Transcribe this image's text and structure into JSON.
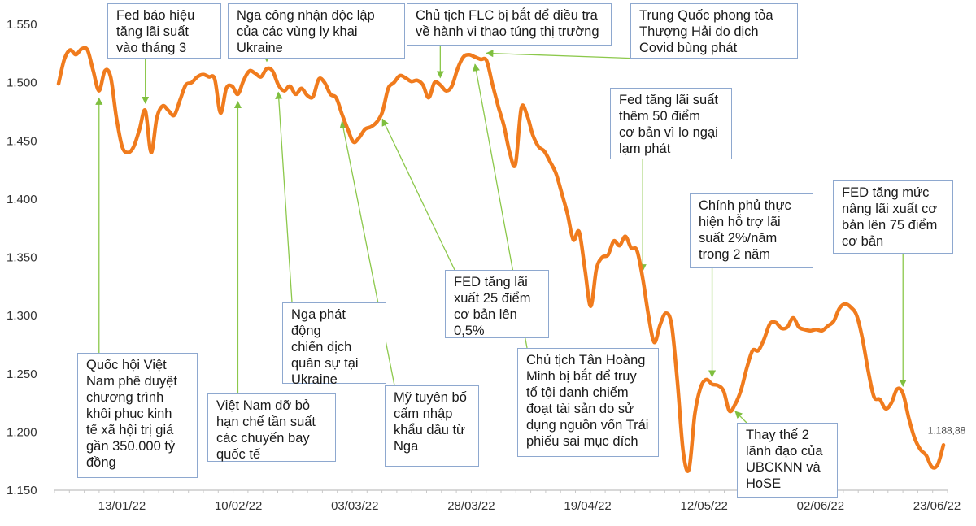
{
  "chart_data": {
    "type": "line",
    "title": "",
    "xlabel": "",
    "ylabel": "",
    "ylim": [
      1150,
      1550
    ],
    "y_ticks": [
      "1.150",
      "1.200",
      "1.250",
      "1.300",
      "1.350",
      "1.400",
      "1.450",
      "1.500",
      "1.550"
    ],
    "x_ticks": [
      "13/01/22",
      "10/02/22",
      "03/03/22",
      "28/03/22",
      "19/04/22",
      "12/05/22",
      "02/06/22",
      "23/06/22"
    ],
    "series": [
      {
        "name": "",
        "color": "#f07b1d",
        "values": [
          1499,
          1520,
          1528,
          1524,
          1529,
          1528,
          1510,
          1493,
          1510,
          1505,
          1470,
          1445,
          1440,
          1445,
          1460,
          1476,
          1440,
          1470,
          1480,
          1476,
          1472,
          1485,
          1498,
          1500,
          1505,
          1507,
          1505,
          1503,
          1474,
          1495,
          1497,
          1490,
          1502,
          1510,
          1508,
          1505,
          1512,
          1510,
          1498,
          1493,
          1497,
          1490,
          1495,
          1489,
          1488,
          1503,
          1500,
          1490,
          1487,
          1473,
          1460,
          1449,
          1453,
          1460,
          1462,
          1466,
          1475,
          1495,
          1500,
          1506,
          1504,
          1501,
          1502,
          1498,
          1487,
          1500,
          1498,
          1493,
          1497,
          1512,
          1522,
          1524,
          1522,
          1520,
          1519,
          1499,
          1480,
          1463,
          1440,
          1430,
          1478,
          1472,
          1455,
          1445,
          1441,
          1432,
          1422,
          1405,
          1387,
          1365,
          1372,
          1340,
          1308,
          1340,
          1350,
          1352,
          1364,
          1360,
          1368,
          1358,
          1356,
          1332,
          1300,
          1277,
          1292,
          1302,
          1292,
          1243,
          1183,
          1168,
          1215,
          1238,
          1245,
          1241,
          1240,
          1235,
          1218,
          1224,
          1236,
          1255,
          1270,
          1270,
          1280,
          1293,
          1294,
          1289,
          1290,
          1298,
          1290,
          1288,
          1287,
          1288,
          1287,
          1291,
          1295,
          1306,
          1310,
          1307,
          1300,
          1280,
          1252,
          1230,
          1228,
          1220,
          1225,
          1237,
          1233,
          1212,
          1195,
          1185,
          1180,
          1170,
          1172,
          1188.88
        ]
      }
    ],
    "last_value_label": "1.188,88",
    "annotations": [
      {
        "text": "Quốc hội Việt\nNam phê duyệt\nchương trình\nkhôi phục kinh\ntế xã hội trị giá\ngần 350.000 tỷ\nđồng",
        "index": 7
      },
      {
        "text": "Fed báo hiệu\ntăng lãi suất\nvào tháng 3",
        "index": 15
      },
      {
        "text": "Việt Nam dỡ bỏ\nhạn chế tần suất\ncác chuyến bay\nquốc tế",
        "index": 31
      },
      {
        "text": "Nga công nhận độc lập\ncủa các vùng ly khai\nUkraine",
        "index": 36
      },
      {
        "text": "Nga phát động\nchiến dịch\nquân sự tại\nUkraine",
        "index": 38
      },
      {
        "text": "Mỹ tuyên bố\ncấm nhập\nkhẩu dầu từ\nNga",
        "index": 49
      },
      {
        "text": "FED tăng lãi\nxuất 25 điểm\ncơ bản lên\n0,5%",
        "index": 56
      },
      {
        "text": "Chủ tịch FLC bị bắt để điều tra\nvề hành vi thao túng thị trường",
        "index": 66
      },
      {
        "text": "Chủ tịch Tân Hoàng\nMinh bị bắt để truy\ntố tội danh chiếm\nđoạt tài sản do sử\ndụng nguồn vốn Trái\nphiếu sai mục đích",
        "index": 72
      },
      {
        "text": "Trung Quốc phong tỏa\nThượng Hải do dịch\nCovid bùng phát",
        "index": 74
      },
      {
        "text": "Fed tăng lãi suất\nthêm 50 điểm\ncơ bản vì lo ngại\nlạm phát",
        "index": 101
      },
      {
        "text": "Chính phủ thực\nhiện hỗ trợ lãi\nsuất 2%/năm\ntrong 2 năm",
        "index": 113
      },
      {
        "text": "Thay thế 2\nlãnh đạo của\nUBCKNN và\nHoSE",
        "index": 117
      },
      {
        "text": "FED tăng mức\nnâng lãi xuất cơ\nbản lên 75 điểm\ncơ bản",
        "index": 146
      }
    ]
  }
}
